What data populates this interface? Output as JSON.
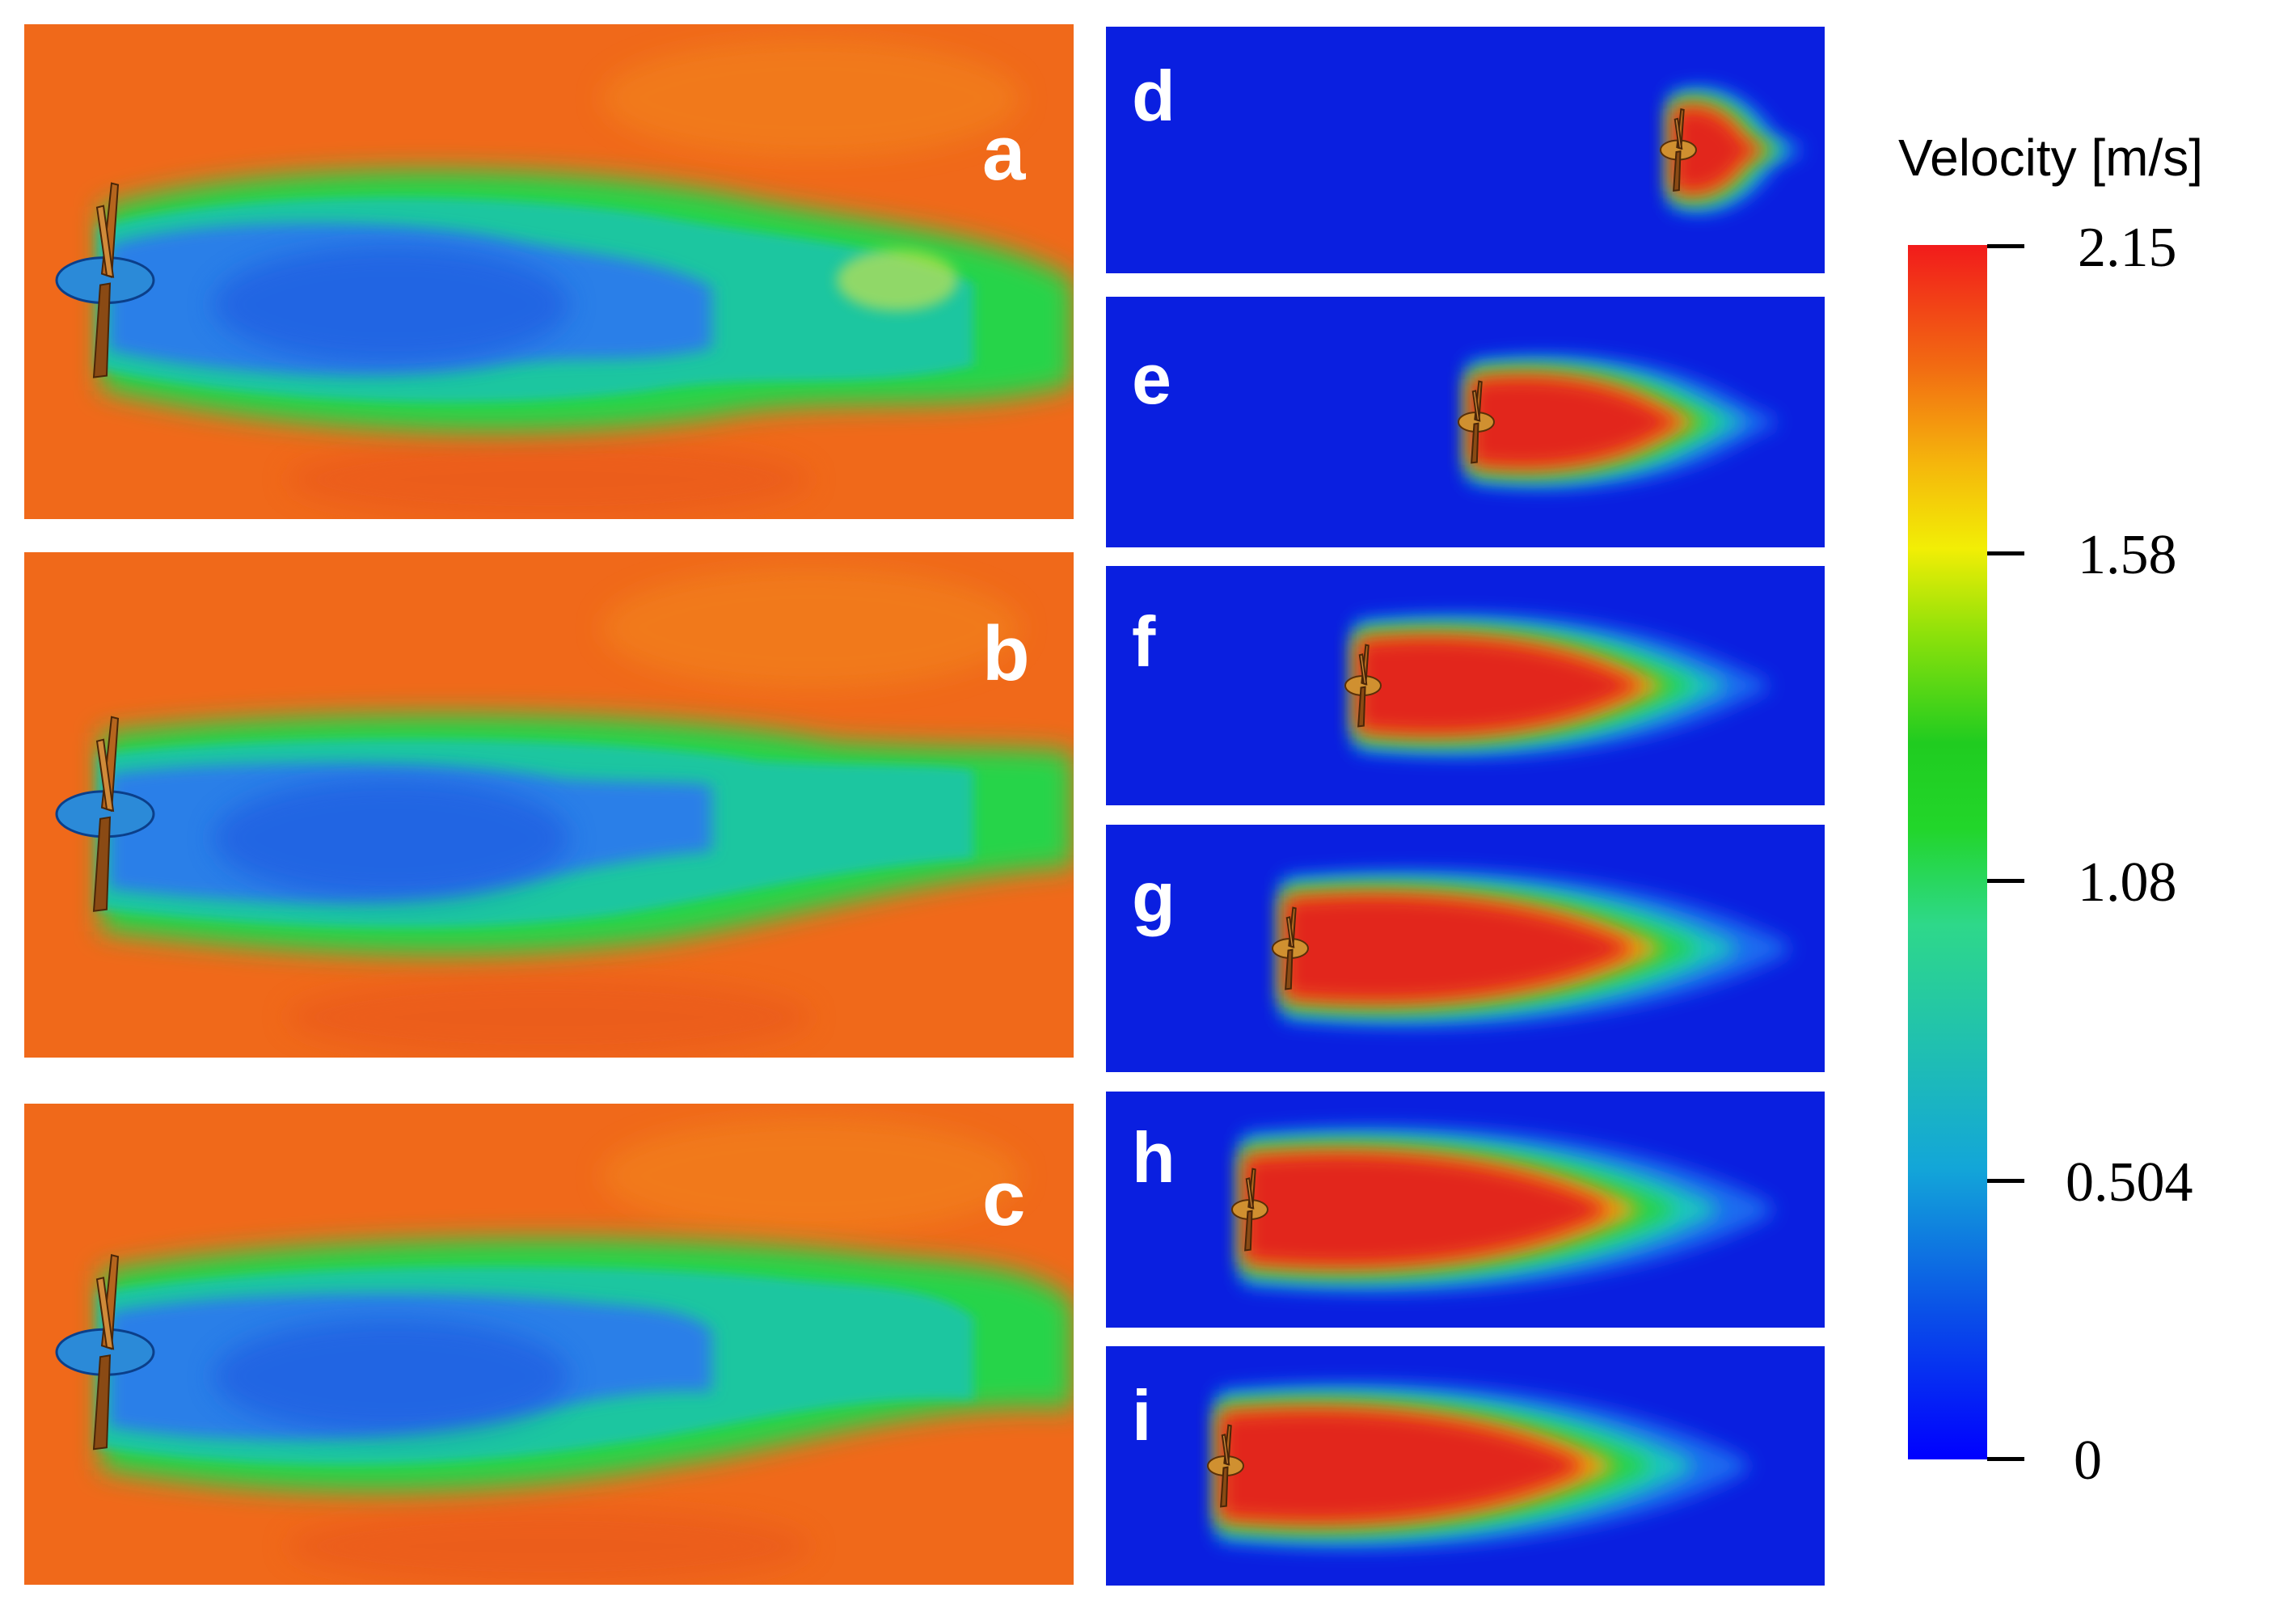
{
  "panels": [
    {
      "id": "a",
      "label": "a",
      "type": "wake"
    },
    {
      "id": "b",
      "label": "b",
      "type": "wake"
    },
    {
      "id": "c",
      "label": "c",
      "type": "wake"
    },
    {
      "id": "d",
      "label": "d",
      "type": "jet"
    },
    {
      "id": "e",
      "label": "e",
      "type": "jet"
    },
    {
      "id": "f",
      "label": "f",
      "type": "jet"
    },
    {
      "id": "g",
      "label": "g",
      "type": "jet"
    },
    {
      "id": "h",
      "label": "h",
      "type": "jet"
    },
    {
      "id": "i",
      "label": "i",
      "type": "jet"
    }
  ],
  "colorbar": {
    "title": "Velocity [m/s]",
    "ticks": [
      "2.15",
      "1.58",
      "1.08",
      "0.504",
      "0"
    ],
    "min": 0,
    "max": 2.15,
    "colors": {
      "low": "#0000ff",
      "mid": "#22d62a",
      "high": "#f21b1b"
    }
  },
  "colors": {
    "freestream": "#f0691a",
    "wake_core": "#2a7fe8",
    "shear_layer": "#25d44a",
    "jet_core": "#e2281e",
    "background_slow": "#0a1fe0"
  }
}
